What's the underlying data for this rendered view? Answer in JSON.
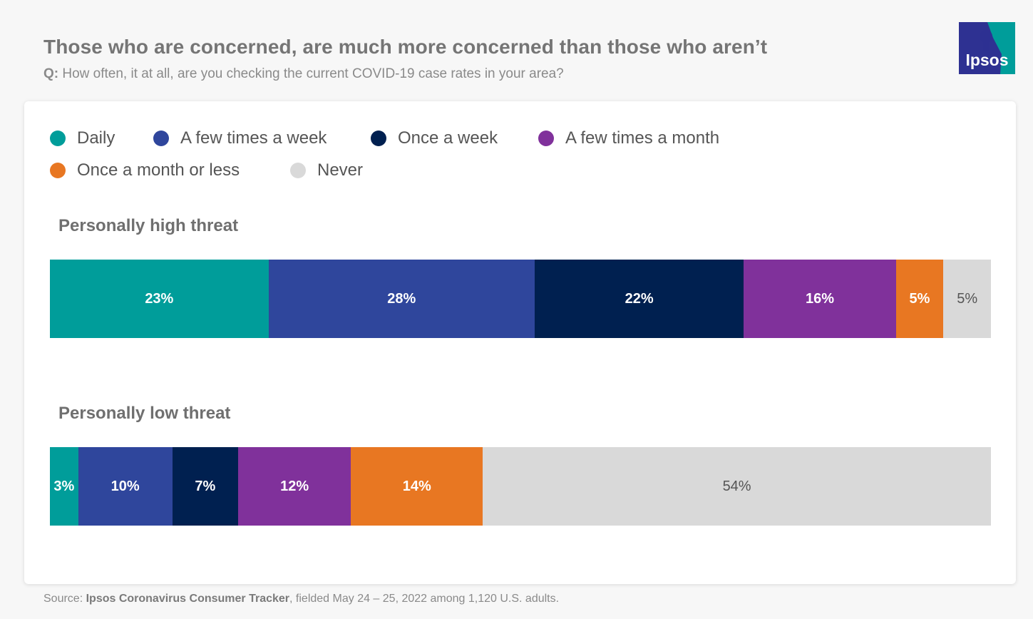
{
  "header": {
    "title": "Those who are concerned, are much more concerned than those who aren’t",
    "question_prefix": "Q:",
    "question_text": "How often, it at all, are you checking the current COVID-19 case rates in your area?"
  },
  "logo": {
    "text": "Ipsos",
    "bg_color": "#2e3192",
    "accent_color": "#009d9a"
  },
  "chart_data": {
    "type": "bar",
    "orientation": "horizontal-stacked-100",
    "categories": [
      "Personally high threat",
      "Personally low threat"
    ],
    "series": [
      {
        "name": "Daily",
        "color": "#009d9a",
        "values": [
          23,
          3
        ]
      },
      {
        "name": "A few times a week",
        "color": "#2f469c",
        "values": [
          28,
          10
        ]
      },
      {
        "name": "Once a week",
        "color": "#002050",
        "values": [
          22,
          7
        ]
      },
      {
        "name": "A few times a month",
        "color": "#80319b",
        "values": [
          16,
          12
        ]
      },
      {
        "name": "Once a month or less",
        "color": "#e87722",
        "values": [
          5,
          14
        ]
      },
      {
        "name": "Never",
        "color": "#d9d9d9",
        "values": [
          5,
          54
        ]
      }
    ],
    "value_suffix": "%",
    "legend_position": "top-left"
  },
  "footer": {
    "source_prefix": "Source:",
    "source_name": "Ipsos Coronavirus Consumer Tracker",
    "source_rest": ", fielded May 24 – 25, 2022 among 1,120 U.S. adults."
  }
}
